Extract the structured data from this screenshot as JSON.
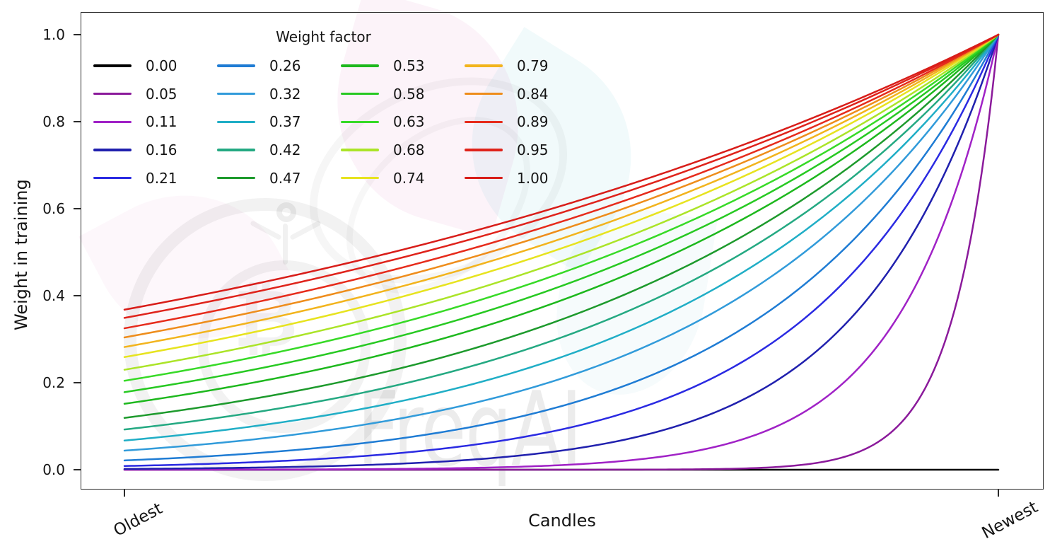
{
  "figure": {
    "background": "#ffffff",
    "watermark_text": "FreqAI",
    "watermark_symbol": "₿",
    "xlabel": "Candles",
    "ylabel": "Weight in training",
    "x_tick_labels": [
      "Oldest",
      "Newest"
    ],
    "y_tick_labels": [
      "0.0",
      "0.2",
      "0.4",
      "0.6",
      "0.8",
      "1.0"
    ]
  },
  "legend": {
    "title": "Weight factor",
    "columns": 4,
    "rows": 5
  },
  "chart_data": {
    "type": "line",
    "title": "",
    "xlabel": "Candles",
    "ylabel": "Weight in training",
    "x_axis": {
      "kind": "candle index, oldest to newest",
      "tick_labels": [
        "Oldest",
        "Newest"
      ]
    },
    "ylim": [
      0.0,
      1.0
    ],
    "y_ticks": [
      0.0,
      0.2,
      0.4,
      0.6,
      0.8,
      1.0
    ],
    "grid": false,
    "legend_title": "Weight factor",
    "legend_position": "upper left, 4 columns, no frame",
    "curve_formula": "weight(x) = exp(-(1 - x) / weight_factor) for x in [0, 1] (x = 0 oldest candle, x = 1 newest candle); for weight_factor = 0 the weight is 0 for all candles",
    "series": [
      {
        "label": "0.00",
        "weight_factor": 0.0,
        "color": "#000000",
        "weight_at_oldest": 0.0,
        "weight_at_newest": 0.0
      },
      {
        "label": "0.05",
        "weight_factor": 0.05,
        "color": "#8b1a9b",
        "weight_at_oldest": 0.0,
        "weight_at_newest": 1.0
      },
      {
        "label": "0.11",
        "weight_factor": 0.11,
        "color": "#a022c6",
        "weight_at_oldest": 0.0001,
        "weight_at_newest": 1.0
      },
      {
        "label": "0.16",
        "weight_factor": 0.16,
        "color": "#2020ae",
        "weight_at_oldest": 0.002,
        "weight_at_newest": 1.0
      },
      {
        "label": "0.21",
        "weight_factor": 0.21,
        "color": "#2a2ae2",
        "weight_at_oldest": 0.009,
        "weight_at_newest": 1.0
      },
      {
        "label": "0.26",
        "weight_factor": 0.26,
        "color": "#1f7cd4",
        "weight_at_oldest": 0.021,
        "weight_at_newest": 1.0
      },
      {
        "label": "0.32",
        "weight_factor": 0.32,
        "color": "#319bda",
        "weight_at_oldest": 0.044,
        "weight_at_newest": 1.0
      },
      {
        "label": "0.37",
        "weight_factor": 0.37,
        "color": "#20aec6",
        "weight_at_oldest": 0.067,
        "weight_at_newest": 1.0
      },
      {
        "label": "0.42",
        "weight_factor": 0.42,
        "color": "#24a982",
        "weight_at_oldest": 0.092,
        "weight_at_newest": 1.0
      },
      {
        "label": "0.47",
        "weight_factor": 0.47,
        "color": "#1d9a2c",
        "weight_at_oldest": 0.119,
        "weight_at_newest": 1.0
      },
      {
        "label": "0.53",
        "weight_factor": 0.53,
        "color": "#1db81d",
        "weight_at_oldest": 0.152,
        "weight_at_newest": 1.0
      },
      {
        "label": "0.58",
        "weight_factor": 0.58,
        "color": "#27c922",
        "weight_at_oldest": 0.178,
        "weight_at_newest": 1.0
      },
      {
        "label": "0.63",
        "weight_factor": 0.63,
        "color": "#37da27",
        "weight_at_oldest": 0.205,
        "weight_at_newest": 1.0
      },
      {
        "label": "0.68",
        "weight_factor": 0.68,
        "color": "#abe428",
        "weight_at_oldest": 0.23,
        "weight_at_newest": 1.0
      },
      {
        "label": "0.74",
        "weight_factor": 0.74,
        "color": "#e7e31f",
        "weight_at_oldest": 0.259,
        "weight_at_newest": 1.0
      },
      {
        "label": "0.79",
        "weight_factor": 0.79,
        "color": "#f2b41d",
        "weight_at_oldest": 0.282,
        "weight_at_newest": 1.0
      },
      {
        "label": "0.84",
        "weight_factor": 0.84,
        "color": "#ee8d1b",
        "weight_at_oldest": 0.304,
        "weight_at_newest": 1.0
      },
      {
        "label": "0.89",
        "weight_factor": 0.89,
        "color": "#e62b1b",
        "weight_at_oldest": 0.325,
        "weight_at_newest": 1.0
      },
      {
        "label": "0.95",
        "weight_factor": 0.95,
        "color": "#df231b",
        "weight_at_oldest": 0.349,
        "weight_at_newest": 1.0
      },
      {
        "label": "1.00",
        "weight_factor": 1.0,
        "color": "#d81d19",
        "weight_at_oldest": 0.368,
        "weight_at_newest": 1.0
      }
    ]
  }
}
